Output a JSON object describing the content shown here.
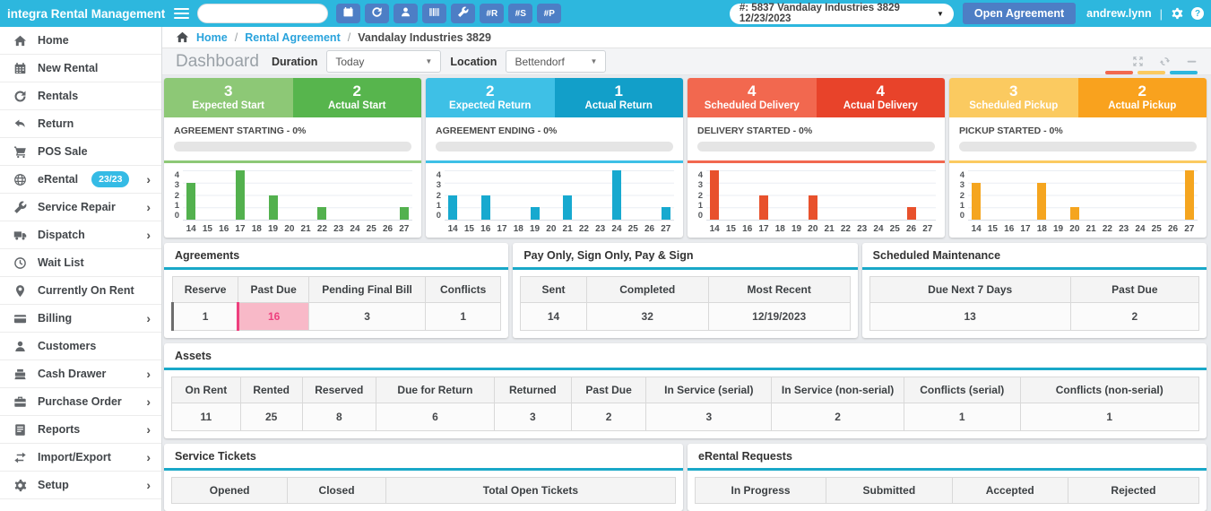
{
  "topbar": {
    "brand": "integra Rental Management",
    "search": {
      "value": "",
      "placeholder": ""
    },
    "buttons": [
      {
        "name": "new-rental",
        "icon": "calendar"
      },
      {
        "name": "rentals",
        "icon": "rotate"
      },
      {
        "name": "customer",
        "icon": "person"
      },
      {
        "name": "barcode",
        "icon": "barcode"
      },
      {
        "name": "service",
        "icon": "wrench"
      },
      {
        "name": "hash-r",
        "label": "#R"
      },
      {
        "name": "hash-s",
        "label": "#S"
      },
      {
        "name": "hash-p",
        "label": "#P"
      }
    ],
    "agreement_dropdown": "#: 5837 Vandalay Industries 3829 12/23/2023",
    "open_agreement_label": "Open Agreement",
    "username": "andrew.lynn",
    "separator": "|"
  },
  "sidebar": {
    "items": [
      {
        "label": "Home",
        "icon": "home"
      },
      {
        "label": "New Rental",
        "icon": "calendar"
      },
      {
        "label": "Rentals",
        "icon": "rotate"
      },
      {
        "label": "Return",
        "icon": "return"
      },
      {
        "label": "POS Sale",
        "icon": "cart"
      },
      {
        "label": "eRental",
        "icon": "globe",
        "badge": "23/23",
        "chevron": true
      },
      {
        "label": "Service Repair",
        "icon": "wrench",
        "chevron": true
      },
      {
        "label": "Dispatch",
        "icon": "truck",
        "chevron": true
      },
      {
        "label": "Wait List",
        "icon": "clock"
      },
      {
        "label": "Currently On Rent",
        "icon": "pin"
      },
      {
        "label": "Billing",
        "icon": "card",
        "chevron": true
      },
      {
        "label": "Customers",
        "icon": "person"
      },
      {
        "label": "Cash Drawer",
        "icon": "register",
        "chevron": true
      },
      {
        "label": "Purchase Order",
        "icon": "briefcase",
        "chevron": true
      },
      {
        "label": "Reports",
        "icon": "report",
        "chevron": true
      },
      {
        "label": "Import/Export",
        "icon": "arrows",
        "chevron": true
      },
      {
        "label": "Setup",
        "icon": "gear",
        "chevron": true
      }
    ]
  },
  "breadcrumb": {
    "home": "Home",
    "sep": "/",
    "section": "Rental Agreement",
    "current": "Vandalay Industries 3829"
  },
  "toolbar": {
    "title": "Dashboard",
    "duration_label": "Duration",
    "duration_value": "Today",
    "location_label": "Location",
    "location_value": "Bettendorf",
    "indicator_bars": [
      "#f2684f",
      "#fbca60",
      "#2db7de"
    ]
  },
  "kpi_cards": [
    {
      "left_value": "3",
      "left_label": "Expected Start",
      "right_value": "2",
      "right_label": "Actual Start",
      "progress_label": "AGREEMENT STARTING - 0%",
      "progress_percent": 0,
      "color_light": "#8dc876",
      "color_dark": "#57b54d"
    },
    {
      "left_value": "2",
      "left_label": "Expected Return",
      "right_value": "1",
      "right_label": "Actual Return",
      "progress_label": "AGREEMENT ENDING - 0%",
      "progress_percent": 0,
      "color_light": "#3ec0e6",
      "color_dark": "#129fc9"
    },
    {
      "left_value": "4",
      "left_label": "Scheduled Delivery",
      "right_value": "4",
      "right_label": "Actual Delivery",
      "progress_label": "DELIVERY STARTED - 0%",
      "progress_percent": 0,
      "color_light": "#f2684f",
      "color_dark": "#e8432a"
    },
    {
      "left_value": "3",
      "left_label": "Scheduled Pickup",
      "right_value": "2",
      "right_label": "Actual Pickup",
      "progress_label": "PICKUP STARTED - 0%",
      "progress_percent": 0,
      "color_light": "#fbca60",
      "color_dark": "#f9a21e"
    }
  ],
  "chart_data": [
    {
      "type": "bar",
      "name": "agreement-starting",
      "title": "Agreement Starting by day",
      "categories": [
        "14",
        "15",
        "16",
        "17",
        "18",
        "19",
        "20",
        "21",
        "22",
        "23",
        "24",
        "25",
        "26",
        "27"
      ],
      "values": [
        3,
        0,
        0,
        4,
        0,
        2,
        0,
        0,
        1,
        0,
        0,
        0,
        0,
        1
      ],
      "color": "#53b14e",
      "ylim": [
        0,
        4
      ],
      "yticks": [
        0,
        1,
        2,
        3,
        4
      ],
      "grid": true,
      "legend": false
    },
    {
      "type": "bar",
      "name": "agreement-ending",
      "title": "Agreement Ending by day",
      "categories": [
        "14",
        "15",
        "16",
        "17",
        "18",
        "19",
        "20",
        "21",
        "22",
        "23",
        "24",
        "25",
        "26",
        "27"
      ],
      "values": [
        2,
        0,
        2,
        0,
        0,
        1,
        0,
        2,
        0,
        0,
        4,
        0,
        0,
        1
      ],
      "color": "#17a9cf",
      "ylim": [
        0,
        4
      ],
      "yticks": [
        0,
        1,
        2,
        3,
        4
      ],
      "grid": true,
      "legend": false
    },
    {
      "type": "bar",
      "name": "delivery-started",
      "title": "Delivery Started by day",
      "categories": [
        "14",
        "15",
        "16",
        "17",
        "18",
        "19",
        "20",
        "21",
        "22",
        "23",
        "24",
        "25",
        "26",
        "27"
      ],
      "values": [
        4,
        0,
        0,
        2,
        0,
        0,
        2,
        0,
        0,
        0,
        0,
        0,
        1,
        0
      ],
      "color": "#e8512c",
      "ylim": [
        0,
        4
      ],
      "yticks": [
        0,
        1,
        2,
        3,
        4
      ],
      "grid": true,
      "legend": false
    },
    {
      "type": "bar",
      "name": "pickup-started",
      "title": "Pickup Started by day",
      "categories": [
        "14",
        "15",
        "16",
        "17",
        "18",
        "19",
        "20",
        "21",
        "22",
        "23",
        "24",
        "25",
        "26",
        "27"
      ],
      "values": [
        3,
        0,
        0,
        0,
        3,
        0,
        1,
        0,
        0,
        0,
        0,
        0,
        0,
        4
      ],
      "color": "#f5a51f",
      "ylim": [
        0,
        4
      ],
      "yticks": [
        0,
        1,
        2,
        3,
        4
      ],
      "grid": true,
      "legend": false
    }
  ],
  "panels": {
    "agreements": {
      "title": "Agreements",
      "headers": [
        "Reserve",
        "Past Due",
        "Pending Final Bill",
        "Conflicts"
      ],
      "values": [
        "1",
        "16",
        "3",
        "1"
      ],
      "row_marker": true,
      "highlight_index": 1
    },
    "pay_sign": {
      "title": "Pay Only, Sign Only, Pay & Sign",
      "headers": [
        "Sent",
        "Completed",
        "Most Recent"
      ],
      "values": [
        "14",
        "32",
        "12/19/2023"
      ]
    },
    "maintenance": {
      "title": "Scheduled Maintenance",
      "headers": [
        "Due Next 7 Days",
        "Past Due"
      ],
      "values": [
        "13",
        "2"
      ]
    },
    "assets": {
      "title": "Assets",
      "headers": [
        "On Rent",
        "Rented",
        "Reserved",
        "Due for Return",
        "Returned",
        "Past Due",
        "In Service (serial)",
        "In Service (non-serial)",
        "Conflicts (serial)",
        "Conflicts (non-serial)"
      ],
      "values": [
        "11",
        "25",
        "8",
        "6",
        "3",
        "2",
        "3",
        "2",
        "1",
        "1"
      ]
    },
    "service_tickets": {
      "title": "Service Tickets",
      "headers": [
        "Opened",
        "Closed",
        "Total Open Tickets"
      ]
    },
    "erental_requests": {
      "title": "eRental Requests",
      "headers": [
        "In Progress",
        "Submitted",
        "Accepted",
        "Rejected"
      ]
    }
  }
}
